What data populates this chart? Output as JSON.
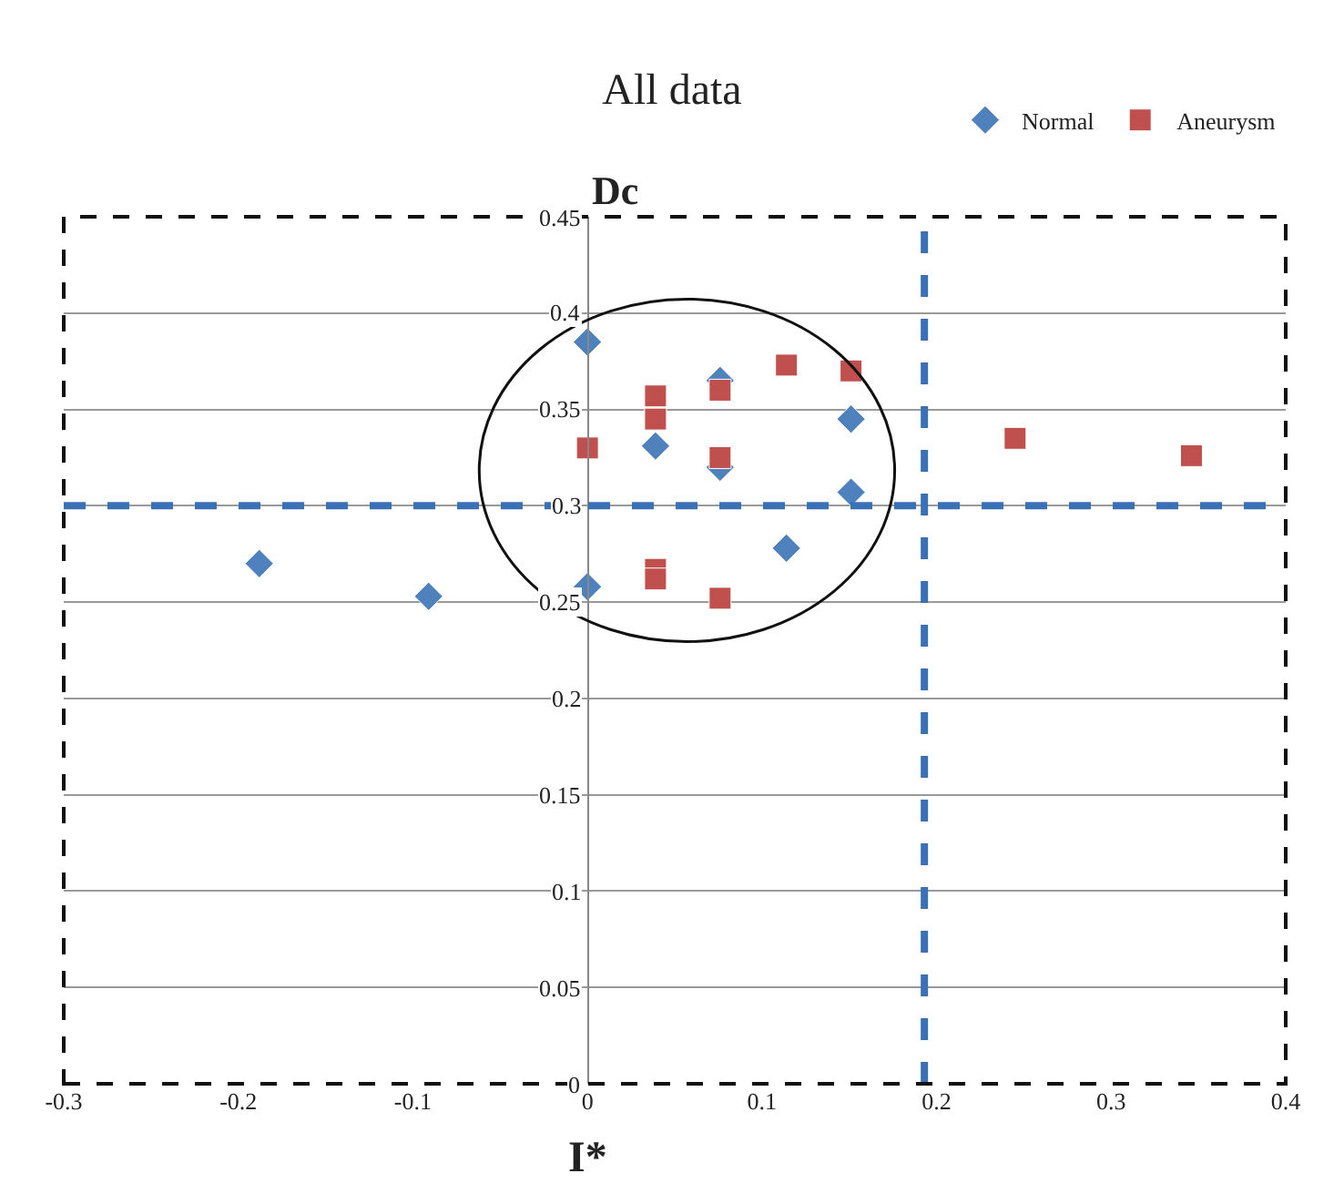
{
  "chart_data": {
    "type": "scatter",
    "title": "All data",
    "xlabel": "I*",
    "ylabel": "Dc",
    "xlim": [
      -0.3,
      0.4
    ],
    "xticks": [
      -0.3,
      -0.2,
      -0.1,
      0,
      0.1,
      0.2,
      0.3,
      0.4
    ],
    "ylim": [
      0,
      0.45
    ],
    "yticks": [
      0,
      0.05,
      0.1,
      0.15,
      0.2,
      0.25,
      0.3,
      0.35,
      0.4,
      0.45
    ],
    "grid": "y",
    "legend": "top right",
    "series": [
      {
        "name": "Normal",
        "color": "#4f81bd",
        "marker": "diamond",
        "x": [
          -0.188,
          -0.091,
          0,
          0,
          0.039,
          0.076,
          0.076,
          0.114,
          0.151,
          0.151
        ],
        "values": [
          0.27,
          0.253,
          0.258,
          0.385,
          0.331,
          0.365,
          0.32,
          0.278,
          0.345,
          0.307
        ]
      },
      {
        "name": "Aneurysm",
        "color": "#c0504d",
        "marker": "square",
        "x": [
          0,
          0.039,
          0.039,
          0.039,
          0.039,
          0.076,
          0.076,
          0.076,
          0.114,
          0.151,
          0.245,
          0.346
        ],
        "values": [
          0.33,
          0.357,
          0.345,
          0.267,
          0.262,
          0.36,
          0.325,
          0.252,
          0.373,
          0.37,
          0.335,
          0.326
        ]
      }
    ],
    "ref_lines": [
      {
        "axis": "y",
        "value": 0.3,
        "color": "#3a70b5",
        "line_style": "dashed"
      },
      {
        "axis": "x",
        "value": 0.193,
        "color": "#3a70b5",
        "line_style": "dashed"
      }
    ]
  }
}
